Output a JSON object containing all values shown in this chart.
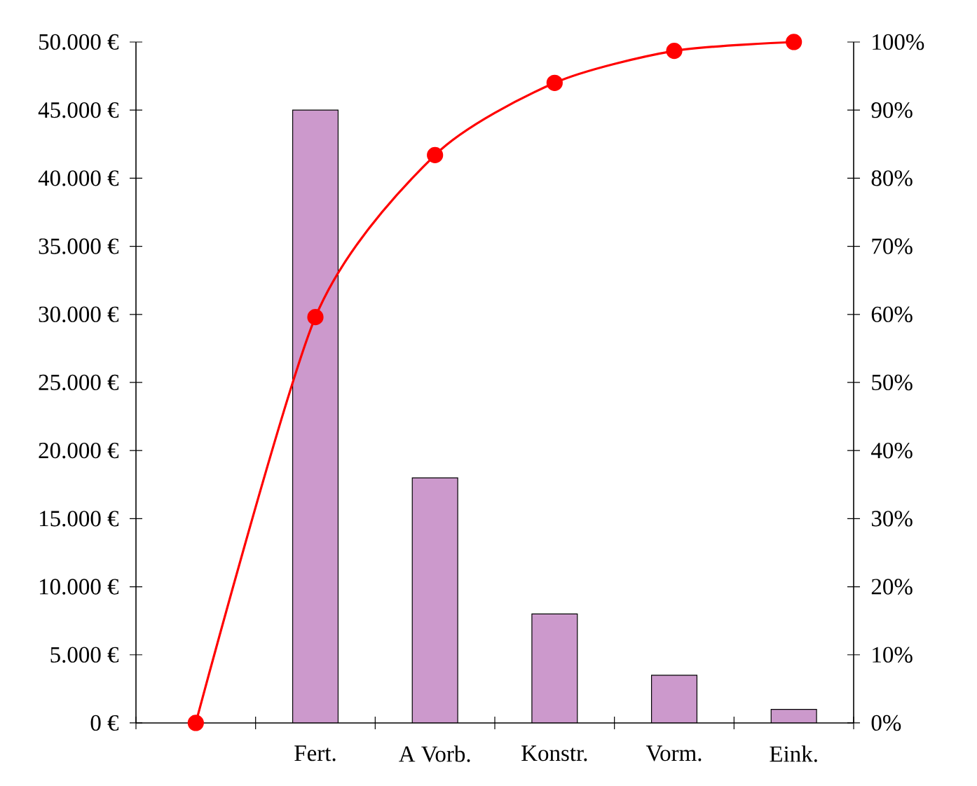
{
  "chart_data": {
    "type": "bar",
    "categories": [
      null,
      "Fert.",
      "A Vorb.",
      "Konstr.",
      "Vorm.",
      "Eink."
    ],
    "series": [
      {
        "color": "#cc99cc",
        "values": [
          null,
          45000,
          18000,
          8000,
          3500,
          1000
        ]
      },
      {
        "type": "line",
        "axis": "y2",
        "color": "#ff0000",
        "values": [
          0,
          59.6,
          83.4,
          94.0,
          98.7,
          100
        ]
      }
    ],
    "marker": "circle",
    "grid": false,
    "ylim": [
      0,
      50000
    ],
    "yticks": [
      {
        "value": 0,
        "label": "0 €"
      },
      {
        "value": 5000,
        "label": "5.000 €"
      },
      {
        "value": 10000,
        "label": "10.000 €"
      },
      {
        "value": 15000,
        "label": "15.000 €"
      },
      {
        "value": 20000,
        "label": "20.000 €"
      },
      {
        "value": 25000,
        "label": "25.000 €"
      },
      {
        "value": 30000,
        "label": "30.000 €"
      },
      {
        "value": 35000,
        "label": "35.000 €"
      },
      {
        "value": 40000,
        "label": "40.000 €"
      },
      {
        "value": 45000,
        "label": "45.000 €"
      },
      {
        "value": 50000,
        "label": "50.000 €"
      }
    ],
    "y2lim": [
      0,
      100
    ],
    "y2ticks": [
      {
        "value": 0,
        "label": "0%"
      },
      {
        "value": 10,
        "label": "10%"
      },
      {
        "value": 20,
        "label": "20%"
      },
      {
        "value": 30,
        "label": "30%"
      },
      {
        "value": 40,
        "label": "40%"
      },
      {
        "value": 50,
        "label": "50%"
      },
      {
        "value": 60,
        "label": "60%"
      },
      {
        "value": 70,
        "label": "70%"
      },
      {
        "value": 80,
        "label": "80%"
      },
      {
        "value": 90,
        "label": "90%"
      },
      {
        "value": 100,
        "label": "100%"
      }
    ]
  }
}
